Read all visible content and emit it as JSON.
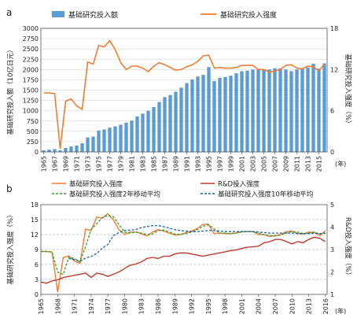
{
  "chart_data": [
    {
      "panel": "a",
      "type": "bar+line",
      "x_labels": [
        "1965",
        "1967",
        "1969",
        "1971",
        "1973",
        "1975",
        "1977",
        "1979",
        "1981",
        "1983",
        "1985",
        "1987",
        "1989",
        "1991",
        "1993",
        "1995",
        "1997",
        "1999",
        "2001",
        "2003",
        "2005",
        "2007",
        "2009",
        "2011",
        "2013",
        "2015"
      ],
      "x_unit": "(年)",
      "y_left_label": "基础研究投入额（10亿日元）",
      "y_left_ticks": [
        0,
        250,
        500,
        750,
        1000,
        1250,
        1500,
        1750,
        2000,
        2250,
        2500,
        2750,
        3000
      ],
      "y_left_range": [
        0,
        3000
      ],
      "y_right_label": "基础研究投入强度（%）",
      "y_right_ticks": [
        0,
        6,
        12,
        18
      ],
      "y_right_range": [
        0,
        18
      ],
      "grid": "horizontal",
      "legend_position": "top",
      "series": [
        {
          "name": "基础研究投入额",
          "kind": "bar",
          "color": "#5b9bd5",
          "axis": "left",
          "x": [
            1965,
            1966,
            1967,
            1968,
            1969,
            1970,
            1971,
            1972,
            1973,
            1974,
            1975,
            1976,
            1977,
            1978,
            1979,
            1980,
            1981,
            1982,
            1983,
            1984,
            1985,
            1986,
            1987,
            1988,
            1989,
            1990,
            1991,
            1992,
            1993,
            1994,
            1995,
            1996,
            1997,
            1998,
            1999,
            2000,
            2001,
            2002,
            2003,
            2004,
            2005,
            2006,
            2007,
            2008,
            2009,
            2010,
            2011,
            2012,
            2013,
            2014,
            2015,
            2016
          ],
          "values": [
            40,
            55,
            70,
            40,
            95,
            130,
            155,
            210,
            350,
            370,
            520,
            545,
            590,
            620,
            660,
            710,
            760,
            860,
            930,
            1000,
            1090,
            1210,
            1330,
            1380,
            1460,
            1560,
            1670,
            1760,
            1830,
            1870,
            2060,
            1720,
            1800,
            1820,
            1850,
            1910,
            1960,
            1970,
            2000,
            2000,
            2010,
            2000,
            2030,
            2030,
            2000,
            1960,
            2000,
            2010,
            2050,
            2140,
            2020,
            2150
          ]
        },
        {
          "name": "基础研究投入强度",
          "kind": "line",
          "color": "#ed7d31",
          "axis": "right",
          "x": [
            1965,
            1966,
            1967,
            1968,
            1969,
            1970,
            1971,
            1972,
            1973,
            1974,
            1975,
            1976,
            1977,
            1978,
            1979,
            1980,
            1981,
            1982,
            1983,
            1984,
            1985,
            1986,
            1987,
            1988,
            1989,
            1990,
            1991,
            1992,
            1993,
            1994,
            1995,
            1996,
            1997,
            1998,
            1999,
            2000,
            2001,
            2002,
            2003,
            2004,
            2005,
            2006,
            2007,
            2008,
            2009,
            2010,
            2011,
            2012,
            2013,
            2014,
            2015,
            2016
          ],
          "values": [
            8.6,
            8.6,
            8.5,
            0.5,
            7.4,
            7.7,
            6.7,
            6.2,
            13.1,
            12.8,
            15.5,
            15.3,
            16.2,
            14.9,
            13.0,
            12.0,
            12.5,
            12.5,
            12.2,
            11.7,
            12.5,
            13.0,
            12.7,
            12.3,
            11.9,
            12.0,
            12.4,
            12.7,
            13.2,
            14.0,
            14.1,
            12.2,
            12.3,
            12.2,
            12.2,
            12.3,
            12.6,
            12.6,
            12.6,
            12.0,
            12.0,
            11.6,
            11.8,
            12.0,
            12.6,
            12.7,
            12.2,
            12.1,
            12.5,
            12.4,
            11.8,
            12.8
          ]
        }
      ]
    },
    {
      "panel": "b",
      "type": "line",
      "x_labels": [
        "1965",
        "1968",
        "1971",
        "1974",
        "1977",
        "1980",
        "1983",
        "1986",
        "1989",
        "1992",
        "1995",
        "1998",
        "2001",
        "2004",
        "2007",
        "2010",
        "2013",
        "2016"
      ],
      "x_unit": "(年)",
      "y_left_label": "基础研究投入强度（%）",
      "y_left_ticks": [
        0,
        3,
        6,
        9,
        12,
        15,
        18
      ],
      "y_left_range": [
        0,
        18
      ],
      "y_right_label": "R&D投入强度（%）",
      "y_right_ticks": [
        1,
        2,
        3,
        4,
        5
      ],
      "y_right_range": [
        1,
        5
      ],
      "grid": "horizontal-dashed",
      "legend_position": "top",
      "series": [
        {
          "name": "基础研究投入强度",
          "color": "#ed7d31",
          "style": "solid",
          "axis": "left",
          "x": [
            1965,
            1966,
            1967,
            1968,
            1969,
            1970,
            1971,
            1972,
            1973,
            1974,
            1975,
            1976,
            1977,
            1978,
            1979,
            1980,
            1981,
            1982,
            1983,
            1984,
            1985,
            1986,
            1987,
            1988,
            1989,
            1990,
            1991,
            1992,
            1993,
            1994,
            1995,
            1996,
            1997,
            1998,
            1999,
            2000,
            2001,
            2002,
            2003,
            2004,
            2005,
            2006,
            2007,
            2008,
            2009,
            2010,
            2011,
            2012,
            2013,
            2014,
            2015,
            2016
          ],
          "values": [
            8.6,
            8.6,
            8.5,
            0.5,
            7.4,
            7.7,
            6.7,
            6.2,
            13.1,
            12.8,
            15.5,
            15.3,
            16.2,
            14.9,
            13.0,
            12.0,
            12.5,
            12.5,
            12.2,
            11.7,
            12.5,
            13.0,
            12.7,
            12.3,
            11.9,
            12.0,
            12.4,
            12.7,
            13.2,
            14.0,
            14.1,
            12.2,
            12.3,
            12.2,
            12.2,
            12.3,
            12.6,
            12.6,
            12.6,
            12.0,
            12.0,
            11.6,
            11.8,
            12.0,
            12.6,
            12.7,
            12.2,
            12.1,
            12.5,
            12.4,
            11.8,
            12.8
          ]
        },
        {
          "name": "R&D投入强度",
          "color": "#c0392b",
          "style": "solid",
          "axis": "right",
          "x": [
            1965,
            1966,
            1967,
            1968,
            1969,
            1970,
            1971,
            1972,
            1973,
            1974,
            1975,
            1976,
            1977,
            1978,
            1979,
            1980,
            1981,
            1982,
            1983,
            1984,
            1985,
            1986,
            1987,
            1988,
            1989,
            1990,
            1991,
            1992,
            1993,
            1994,
            1995,
            1996,
            1997,
            1998,
            1999,
            2000,
            2001,
            2002,
            2003,
            2004,
            2005,
            2006,
            2007,
            2008,
            2009,
            2010,
            2011,
            2012,
            2013,
            2014,
            2015,
            2016
          ],
          "values": [
            1.55,
            1.5,
            1.6,
            1.65,
            1.75,
            1.8,
            1.85,
            1.9,
            1.95,
            1.75,
            1.95,
            1.9,
            1.8,
            1.9,
            2.0,
            2.15,
            2.3,
            2.35,
            2.45,
            2.6,
            2.65,
            2.6,
            2.7,
            2.7,
            2.8,
            2.85,
            2.85,
            2.8,
            2.75,
            2.7,
            2.75,
            2.8,
            2.85,
            2.9,
            2.95,
            2.98,
            3.05,
            3.1,
            3.12,
            3.15,
            3.3,
            3.35,
            3.45,
            3.45,
            3.35,
            3.25,
            3.35,
            3.3,
            3.45,
            3.55,
            3.5,
            3.35
          ]
        },
        {
          "name": "基础研究投入强度2年移动平均",
          "color": "#2ca02c",
          "style": "dashed",
          "axis": "left",
          "x": [
            1965,
            1966,
            1967,
            1968,
            1969,
            1970,
            1971,
            1972,
            1973,
            1974,
            1975,
            1976,
            1977,
            1978,
            1979,
            1980,
            1981,
            1982,
            1983,
            1984,
            1985,
            1986,
            1987,
            1988,
            1989,
            1990,
            1991,
            1992,
            1993,
            1994,
            1995,
            1996,
            1997,
            1998,
            1999,
            2000,
            2001,
            2002,
            2003,
            2004,
            2005,
            2006,
            2007,
            2008,
            2009,
            2010,
            2011,
            2012,
            2013,
            2014,
            2015,
            2016
          ],
          "values": [
            8.6,
            8.6,
            8.5,
            4.5,
            4.0,
            7.5,
            7.2,
            6.5,
            9.6,
            13.0,
            14.2,
            15.4,
            15.8,
            15.5,
            14.0,
            12.5,
            12.3,
            12.5,
            12.3,
            12.0,
            12.1,
            12.8,
            12.9,
            12.5,
            12.1,
            12.0,
            12.2,
            12.5,
            13.0,
            13.6,
            14.0,
            13.2,
            12.3,
            12.3,
            12.2,
            12.3,
            12.5,
            12.6,
            12.6,
            12.3,
            12.0,
            11.8,
            11.7,
            11.9,
            12.3,
            12.6,
            12.5,
            12.2,
            12.3,
            12.5,
            12.1,
            12.3
          ]
        },
        {
          "name": "基础研究投入强度10年移动平均",
          "color": "#1f5fa8",
          "style": "dashed",
          "axis": "left",
          "x": [
            1970,
            1971,
            1972,
            1973,
            1974,
            1975,
            1976,
            1977,
            1978,
            1979,
            1980,
            1981,
            1982,
            1983,
            1984,
            1985,
            1986,
            1987,
            1988,
            1989,
            1990,
            1991,
            1992,
            1993,
            1994,
            1995,
            1996,
            1997,
            1998,
            1999,
            2000,
            2001,
            2002,
            2003,
            2004,
            2005,
            2006,
            2007,
            2008,
            2009,
            2010,
            2011,
            2012,
            2013,
            2014,
            2015,
            2016
          ],
          "values": [
            7.2,
            7.0,
            6.6,
            7.3,
            7.6,
            8.2,
            9.3,
            10.0,
            11.8,
            12.4,
            12.8,
            12.9,
            13.0,
            13.4,
            13.6,
            13.8,
            13.8,
            13.6,
            13.3,
            13.0,
            12.8,
            12.7,
            12.6,
            12.6,
            12.7,
            12.8,
            12.8,
            12.7,
            12.6,
            12.6,
            12.6,
            12.6,
            12.6,
            12.6,
            12.5,
            12.4,
            12.3,
            12.3,
            12.3,
            12.3,
            12.3,
            12.2,
            12.2,
            12.2,
            12.3,
            12.2,
            12.3
          ]
        }
      ]
    }
  ],
  "panel_labels": {
    "a": "a",
    "b": "b"
  }
}
